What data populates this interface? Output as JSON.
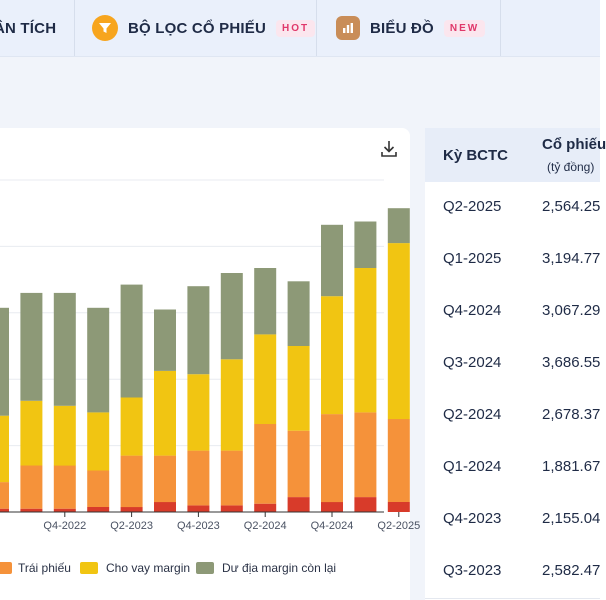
{
  "nav": {
    "tabs": [
      {
        "label": "ÂN TÍCH"
      },
      {
        "label": "BỘ LỌC CỔ PHIẾU",
        "badge": "HOT",
        "icon": "filter-icon"
      },
      {
        "label": "BIỂU ĐỒ",
        "badge": "NEW",
        "icon": "chart-icon"
      }
    ]
  },
  "colors": {
    "bond": "#f5923a",
    "margin": "#f1c512",
    "margin_remaining": "#8d9977",
    "bottom": "#d83b2a",
    "header_bg": "#e7edf8",
    "nav_bg": "#eaf0fb"
  },
  "chart_data": {
    "type": "bar",
    "stacked": true,
    "x_tick_labels": [
      "Q4-2022",
      "Q2-2023",
      "Q4-2023",
      "Q2-2024",
      "Q4-2024",
      "Q2-2025"
    ],
    "categories": [
      "Q2-2022",
      "Q3-2022",
      "Q4-2022",
      "Q1-2023",
      "Q2-2023",
      "Q3-2023",
      "Q4-2023",
      "Q1-2024",
      "Q2-2024",
      "Q3-2024",
      "Q4-2024",
      "Q1-2025",
      "Q2-2025"
    ],
    "series": [
      {
        "name": "",
        "color_key": "bottom",
        "values": [
          1.0,
          1.0,
          1.0,
          1.5,
          1.5,
          3.0,
          2.0,
          2.0,
          2.5,
          4.5,
          3.0,
          4.5,
          3.0
        ]
      },
      {
        "name": "Trái phiếu",
        "color_key": "bond",
        "values": [
          8.0,
          13.0,
          13.0,
          11.0,
          15.5,
          14.0,
          16.5,
          16.5,
          24.0,
          20.0,
          26.5,
          25.5,
          25.0
        ]
      },
      {
        "name": "Cho vay margin",
        "color_key": "margin",
        "values": [
          20.0,
          19.5,
          18.0,
          17.5,
          17.5,
          25.5,
          23.0,
          27.5,
          27.0,
          25.5,
          35.5,
          43.5,
          53.0
        ]
      },
      {
        "name": "Dư địa margin còn lại",
        "color_key": "margin_remaining",
        "values": [
          32.5,
          32.5,
          34.0,
          31.5,
          34.0,
          18.5,
          26.5,
          26.0,
          20.0,
          19.5,
          21.5,
          14.0,
          10.5
        ]
      }
    ],
    "legend": [
      "Trái phiếu",
      "Cho vay margin",
      "Dư địa margin còn lại"
    ],
    "legend_position": "bottom",
    "grid": true
  },
  "table": {
    "headers": {
      "period": "Kỳ BCTC",
      "value": "Cổ phiếu",
      "value_unit": "(tỷ đồng)"
    },
    "rows": [
      {
        "period": "Q2-2025",
        "value": "2,564.25"
      },
      {
        "period": "Q1-2025",
        "value": "3,194.77"
      },
      {
        "period": "Q4-2024",
        "value": "3,067.29"
      },
      {
        "period": "Q3-2024",
        "value": "3,686.55"
      },
      {
        "period": "Q2-2024",
        "value": "2,678.37"
      },
      {
        "period": "Q1-2024",
        "value": "1,881.67"
      },
      {
        "period": "Q4-2023",
        "value": "2,155.04"
      },
      {
        "period": "Q3-2023",
        "value": "2,582.47"
      }
    ]
  }
}
